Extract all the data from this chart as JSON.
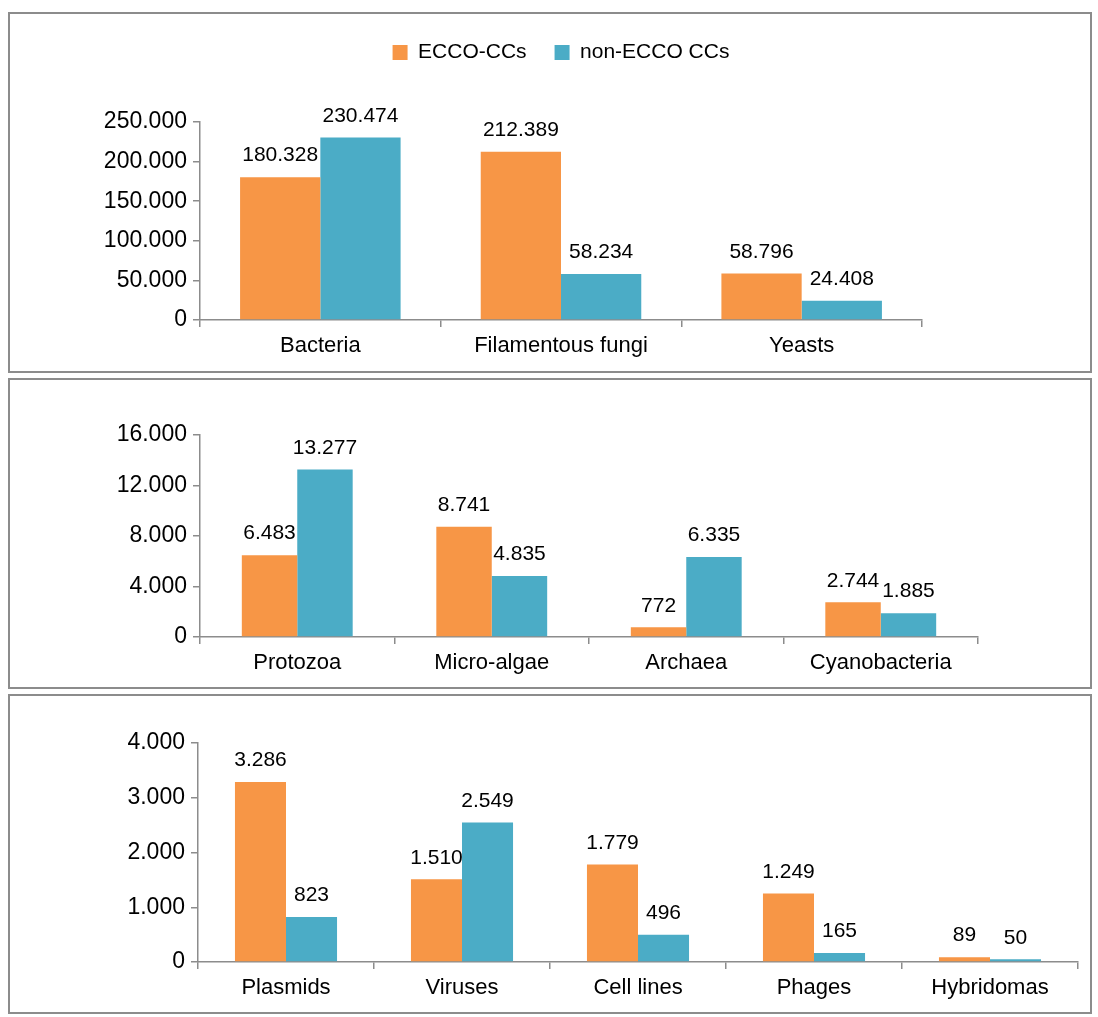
{
  "chart_data": [
    {
      "type": "bar",
      "categories": [
        "Bacteria",
        "Filamentous fungi",
        "Yeasts"
      ],
      "series": [
        {
          "name": "ECCO-CCs",
          "color": "#f79646",
          "values": [
            180328,
            212389,
            58796
          ],
          "value_labels": [
            "180.328",
            "212.389",
            "58.796"
          ]
        },
        {
          "name": "non-ECCO CCs",
          "color": "#4bacc6",
          "values": [
            230474,
            58234,
            24408
          ],
          "value_labels": [
            "230.474",
            "58.234",
            "24.408"
          ]
        }
      ],
      "ylim": [
        0,
        250000
      ],
      "yticks": [
        {
          "value": 0,
          "label": "0"
        },
        {
          "value": 50000,
          "label": "50.000"
        },
        {
          "value": 100000,
          "label": "100.000"
        },
        {
          "value": 150000,
          "label": "150.000"
        },
        {
          "value": 200000,
          "label": "200.000"
        },
        {
          "value": 250000,
          "label": "250.000"
        }
      ],
      "legend": "top"
    },
    {
      "type": "bar",
      "categories": [
        "Protozoa",
        "Micro-algae",
        "Archaea",
        "Cyanobacteria"
      ],
      "series": [
        {
          "color": "#f79646",
          "values": [
            6483,
            8741,
            772,
            2744
          ],
          "value_labels": [
            "6.483",
            "8.741",
            "772",
            "2.744"
          ]
        },
        {
          "color": "#4bacc6",
          "values": [
            13277,
            4835,
            6335,
            1885
          ],
          "value_labels": [
            "13.277",
            "4.835",
            "6.335",
            "1.885"
          ]
        }
      ],
      "ylim": [
        0,
        16000
      ],
      "yticks": [
        {
          "value": 0,
          "label": "0"
        },
        {
          "value": 4000,
          "label": "4.000"
        },
        {
          "value": 8000,
          "label": "8.000"
        },
        {
          "value": 12000,
          "label": "12.000"
        },
        {
          "value": 16000,
          "label": "16.000"
        }
      ]
    },
    {
      "type": "bar",
      "categories": [
        "Plasmids",
        "Viruses",
        "Cell lines",
        "Phages",
        "Hybridomas"
      ],
      "series": [
        {
          "color": "#f79646",
          "values": [
            3286,
            1510,
            1779,
            1249,
            89
          ],
          "value_labels": [
            "3.286",
            "1.510",
            "1.779",
            "1.249",
            "89"
          ]
        },
        {
          "color": "#4bacc6",
          "values": [
            823,
            2549,
            496,
            165,
            50
          ],
          "value_labels": [
            "823",
            "2.549",
            "496",
            "165",
            "50"
          ]
        }
      ],
      "ylim": [
        0,
        4000
      ],
      "yticks": [
        {
          "value": 0,
          "label": "0"
        },
        {
          "value": 1000,
          "label": "1.000"
        },
        {
          "value": 2000,
          "label": "2.000"
        },
        {
          "value": 3000,
          "label": "3.000"
        },
        {
          "value": 4000,
          "label": "4.000"
        }
      ]
    }
  ]
}
